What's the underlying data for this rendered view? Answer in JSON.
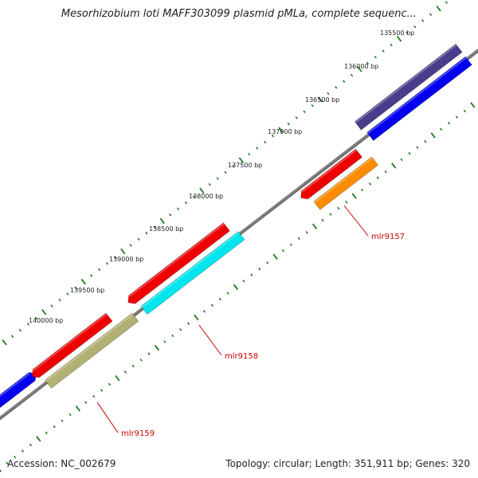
{
  "title": "Mesorhizobium loti MAFF303099 plasmid pMLa, complete sequenc...",
  "footer": {
    "accession": "Accession: NC_002679",
    "info": "Topology: circular; Length: 351,911 bp; Genes: 320"
  },
  "colors": {
    "backbone": "#7f7f7f",
    "tick": "#1f7a1f",
    "label": "#cc0000",
    "ruler_text": "#222222"
  },
  "ruler_labels": [
    "135500 bp",
    "136000 bp",
    "136500 bp",
    "137000 bp",
    "137500 bp",
    "138000 bp",
    "138500 bp",
    "139000 bp",
    "139500 bp",
    "140000 bp"
  ],
  "features": [
    {
      "id": "blue-outer-left",
      "color": "#0000ee",
      "track": "outer"
    },
    {
      "id": "red-outer-left",
      "color": "#ee0000",
      "track": "outer"
    },
    {
      "id": "olive-inner-left",
      "color": "#b3b074",
      "track": "inner"
    },
    {
      "id": "red-outer-mid",
      "color": "#ee0000",
      "track": "outer"
    },
    {
      "id": "cyan-inner-mid",
      "color": "#00e5ee",
      "track": "inner"
    },
    {
      "id": "red-inner-upper",
      "color": "#ee0000",
      "track": "inner"
    },
    {
      "id": "orange-inner-upper",
      "color": "#ff8c00",
      "track": "inner2"
    },
    {
      "id": "navy-outer-top",
      "color": "#483d8b",
      "track": "outer"
    },
    {
      "id": "blue-inner-top",
      "color": "#0000ee",
      "track": "inner"
    }
  ],
  "labels": [
    {
      "text": "mlr9157"
    },
    {
      "text": "mlr9158"
    },
    {
      "text": "mlr9159"
    }
  ]
}
